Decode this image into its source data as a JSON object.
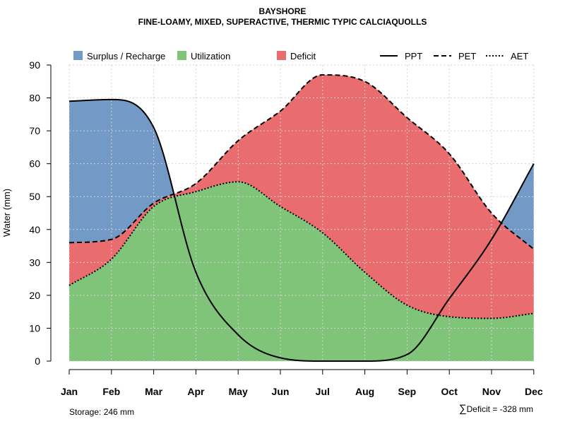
{
  "header": {
    "title": "BAYSHORE",
    "subtitle": "FINE-LOAMY, MIXED, SUPERACTIVE, THERMIC TYPIC CALCIAQUOLLS"
  },
  "footer": {
    "storage_text": "Storage: 246 mm",
    "deficit_symbol": "∑",
    "deficit_text": "Deficit = -328 mm"
  },
  "chart_data": {
    "type": "area",
    "title": "BAYSHORE",
    "subtitle": "FINE-LOAMY, MIXED, SUPERACTIVE, THERMIC TYPIC CALCIAQUOLLS",
    "xlabel": "",
    "ylabel": "Water (mm)",
    "ylim": [
      0,
      90
    ],
    "yticks": [
      0,
      10,
      20,
      30,
      40,
      50,
      60,
      70,
      80,
      90
    ],
    "grid": true,
    "legend_position": "top",
    "categories": [
      "Jan",
      "Feb",
      "Mar",
      "Apr",
      "May",
      "Jun",
      "Jul",
      "Aug",
      "Sep",
      "Oct",
      "Nov",
      "Dec"
    ],
    "series": [
      {
        "name": "PPT",
        "style": "solid",
        "values": [
          79,
          79.5,
          71,
          27,
          8,
          1,
          0,
          0,
          2,
          19,
          37,
          60
        ]
      },
      {
        "name": "PET",
        "style": "dashed",
        "values": [
          36,
          37,
          48,
          54,
          67,
          76,
          87,
          85,
          74,
          63,
          45,
          34
        ]
      },
      {
        "name": "AET",
        "style": "dotted",
        "values": [
          23,
          31,
          47,
          51.5,
          54.5,
          47,
          39,
          27,
          17,
          13.5,
          13,
          14.5
        ]
      }
    ],
    "legend": [
      {
        "label": "Surplus / Recharge",
        "kind": "fill",
        "color": "#7399C6"
      },
      {
        "label": "Utilization",
        "kind": "fill",
        "color": "#80C47A"
      },
      {
        "label": "Deficit",
        "kind": "fill",
        "color": "#E96C6F"
      },
      {
        "label": "PPT",
        "kind": "line",
        "dash": "solid"
      },
      {
        "label": "PET",
        "kind": "line",
        "dash": "dashed"
      },
      {
        "label": "AET",
        "kind": "line",
        "dash": "dotted"
      }
    ],
    "colors": {
      "surplus": "#7399C6",
      "utilization": "#80C47A",
      "deficit": "#E96C6F",
      "line": "#000000",
      "grid": "#d3d3d3"
    }
  }
}
